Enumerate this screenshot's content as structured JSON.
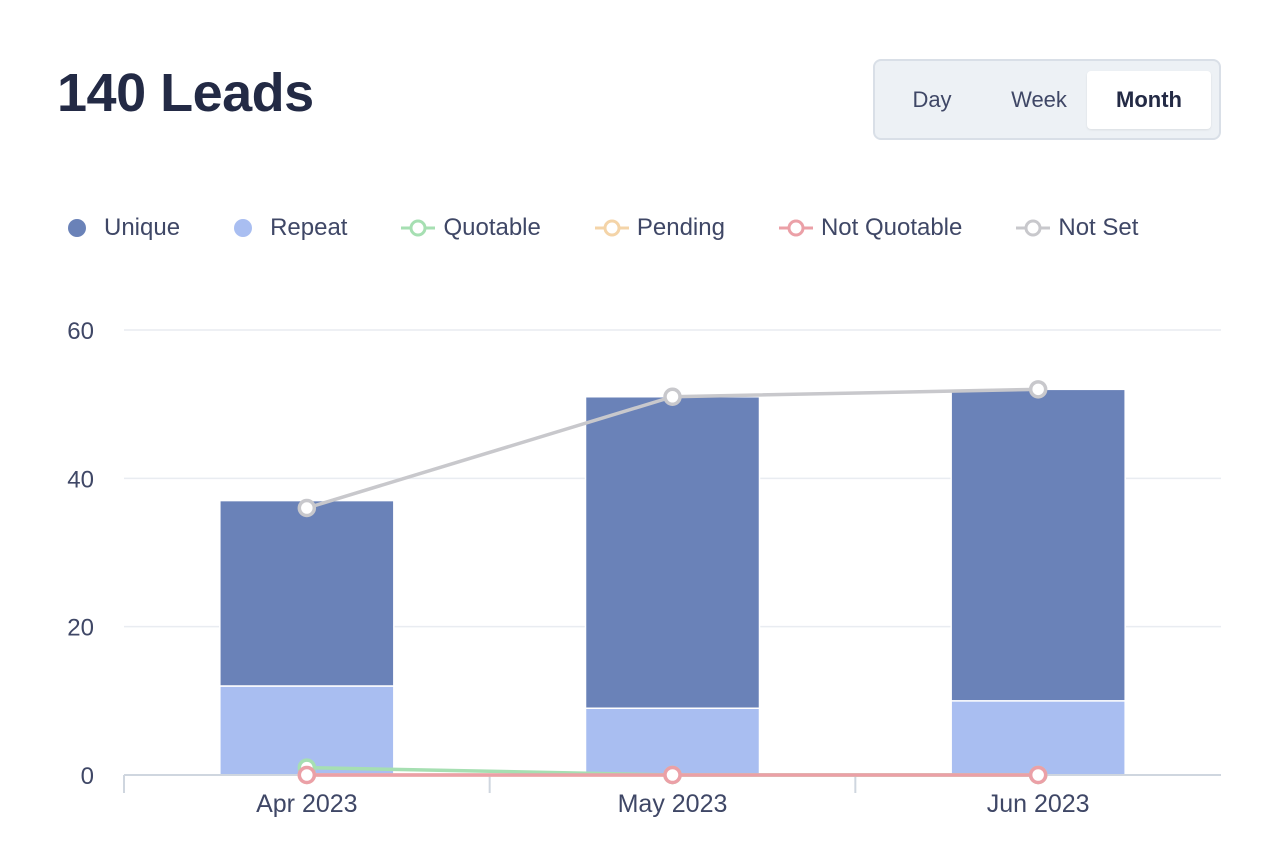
{
  "header": {
    "title": "140 Leads"
  },
  "range_toggle": {
    "options": [
      "Day",
      "Week",
      "Month"
    ],
    "selected": "Month"
  },
  "legend": [
    {
      "label": "Unique",
      "kind": "dot",
      "color": "#6a82b8"
    },
    {
      "label": "Repeat",
      "kind": "dot",
      "color": "#a9bef1"
    },
    {
      "label": "Quotable",
      "kind": "line",
      "color": "#a6dfb2"
    },
    {
      "label": "Pending",
      "kind": "line",
      "color": "#f4d4a8"
    },
    {
      "label": "Not Quotable",
      "kind": "line",
      "color": "#eba0a7"
    },
    {
      "label": "Not Set",
      "kind": "line",
      "color": "#c8c8cc"
    }
  ],
  "chart_data": {
    "type": "bar",
    "stacked": true,
    "categories": [
      "Apr 2023",
      "May 2023",
      "Jun 2023"
    ],
    "ylim": [
      0,
      60
    ],
    "yticks": [
      0,
      20,
      40,
      60
    ],
    "series": [
      {
        "name": "Repeat",
        "type": "bar",
        "color": "#a9bef1",
        "values": [
          12,
          9,
          10
        ]
      },
      {
        "name": "Unique",
        "type": "bar",
        "color": "#6a82b8",
        "values": [
          25,
          42,
          42
        ]
      },
      {
        "name": "Quotable",
        "type": "line",
        "color": "#a6dfb2",
        "values": [
          1,
          0,
          0
        ]
      },
      {
        "name": "Pending",
        "type": "line",
        "color": "#f4d4a8",
        "values": [
          0,
          0,
          0
        ]
      },
      {
        "name": "Not Quotable",
        "type": "line",
        "color": "#eba0a7",
        "values": [
          0,
          0,
          0
        ]
      },
      {
        "name": "Not Set",
        "type": "line",
        "color": "#c8c8cc",
        "values": [
          36,
          51,
          52
        ]
      }
    ]
  }
}
